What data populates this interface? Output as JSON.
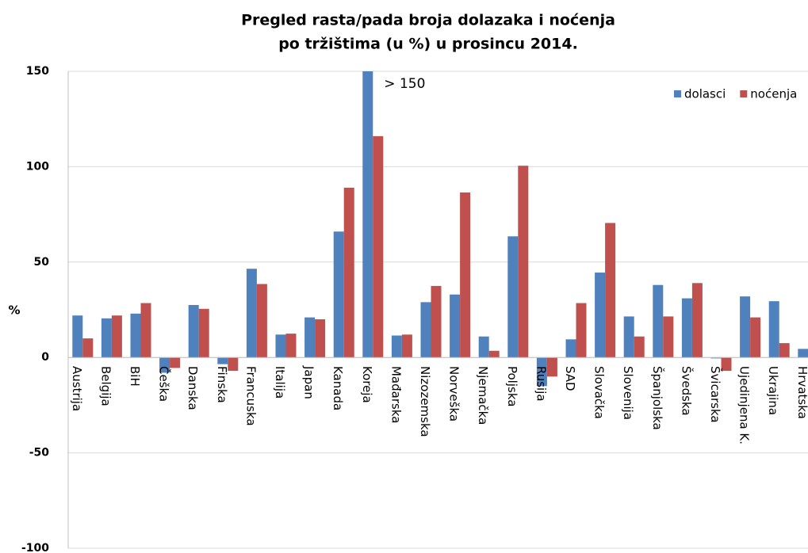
{
  "chart_data": {
    "type": "bar",
    "title": "Pregled rasta/pada broja dolazaka i noćenja",
    "subtitle": "po tržištima (u %) u prosincu 2014.",
    "y_label": "%",
    "annotation": "> 150",
    "categories": [
      "Austrija",
      "Belgija",
      "BiH",
      "Češka",
      "Danska",
      "Finska",
      "Francuska",
      "Italija",
      "Japan",
      "Kanada",
      "Koreja",
      "Mađarska",
      "Nizozemska",
      "Norveška",
      "Njemačka",
      "Poljska",
      "Rusija",
      "SAD",
      "Slovačka",
      "Slovenija",
      "Španjolska",
      "Švedska",
      "Švicarska",
      "Ujedinjena K.",
      "Ukrajina",
      "Hrvatska"
    ],
    "series": [
      {
        "name": "dolasci",
        "color": "#4f81bd",
        "values": [
          22,
          20.5,
          23,
          -8,
          27.5,
          -3.5,
          46.5,
          12,
          21,
          66,
          150,
          11.5,
          29,
          33,
          11,
          63.5,
          -15,
          9.5,
          44.5,
          21.5,
          38,
          31,
          -0.5,
          32,
          29.5,
          4.5
        ]
      },
      {
        "name": "noćenja",
        "color": "#c0504d",
        "values": [
          10,
          22,
          28.5,
          -5.5,
          25.5,
          -7,
          38.5,
          12.5,
          20,
          89,
          116,
          12,
          37.5,
          86.5,
          3.5,
          100.5,
          -10,
          28.5,
          70.5,
          11,
          21.5,
          39,
          -7,
          21,
          7.5,
          -1
        ]
      }
    ],
    "ylim": [
      -100,
      150
    ],
    "yticks": [
      -100,
      -50,
      0,
      50,
      100,
      150
    ],
    "grid": true,
    "legend": "top-right"
  }
}
